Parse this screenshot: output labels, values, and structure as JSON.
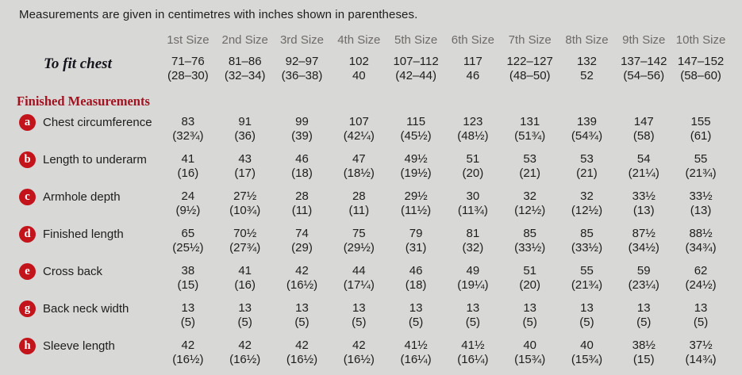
{
  "title": "Measurements are given in centimetres with inches shown in parentheses.",
  "section_heading": "Finished Measurements",
  "size_headers": [
    "1st Size",
    "2nd Size",
    "3rd Size",
    "4th Size",
    "5th Size",
    "6th Size",
    "7th Size",
    "8th Size",
    "9th Size",
    "10th Size"
  ],
  "to_fit_chest": {
    "label": "To fit chest",
    "cm": [
      "71–76",
      "81–86",
      "92–97",
      "102",
      "107–112",
      "117",
      "122–127",
      "132",
      "137–142",
      "147–152"
    ],
    "in": [
      "(28–30)",
      "(32–34)",
      "(36–38)",
      "40",
      "(42–44)",
      "46",
      "(48–50)",
      "52",
      "(54–56)",
      "(58–60)"
    ]
  },
  "rows": [
    {
      "letter": "a",
      "label": "Chest circumference",
      "cm": [
        "83",
        "91",
        "99",
        "107",
        "115",
        "123",
        "131",
        "139",
        "147",
        "155"
      ],
      "in": [
        "(32¾)",
        "(36)",
        "(39)",
        "(42¼)",
        "(45½)",
        "(48½)",
        "(51¾)",
        "(54¾)",
        "(58)",
        "(61)"
      ]
    },
    {
      "letter": "b",
      "label": "Length to underarm",
      "cm": [
        "41",
        "43",
        "46",
        "47",
        "49½",
        "51",
        "53",
        "53",
        "54",
        "55"
      ],
      "in": [
        "(16)",
        "(17)",
        "(18)",
        "(18½)",
        "(19½)",
        "(20)",
        "(21)",
        "(21)",
        "(21¼)",
        "(21¾)"
      ]
    },
    {
      "letter": "c",
      "label": "Armhole depth",
      "cm": [
        "24",
        "27½",
        "28",
        "28",
        "29½",
        "30",
        "32",
        "32",
        "33½",
        "33½"
      ],
      "in": [
        "(9½)",
        "(10¾)",
        "(11)",
        "(11)",
        "(11½)",
        "(11¾)",
        "(12½)",
        "(12½)",
        "(13)",
        "(13)"
      ]
    },
    {
      "letter": "d",
      "label": "Finished length",
      "cm": [
        "65",
        "70½",
        "74",
        "75",
        "79",
        "81",
        "85",
        "85",
        "87½",
        "88½"
      ],
      "in": [
        "(25½)",
        "(27¾)",
        "(29)",
        "(29½)",
        "(31)",
        "(32)",
        "(33½)",
        "(33½)",
        "(34½)",
        "(34¾)"
      ]
    },
    {
      "letter": "e",
      "label": "Cross back",
      "cm": [
        "38",
        "41",
        "42",
        "44",
        "46",
        "49",
        "51",
        "55",
        "59",
        "62"
      ],
      "in": [
        "(15)",
        "(16)",
        "(16½)",
        "(17¼)",
        "(18)",
        "(19¼)",
        "(20)",
        "(21¾)",
        "(23¼)",
        "(24½)"
      ]
    },
    {
      "letter": "g",
      "label": "Back neck width",
      "cm": [
        "13",
        "13",
        "13",
        "13",
        "13",
        "13",
        "13",
        "13",
        "13",
        "13"
      ],
      "in": [
        "(5)",
        "(5)",
        "(5)",
        "(5)",
        "(5)",
        "(5)",
        "(5)",
        "(5)",
        "(5)",
        "(5)"
      ]
    },
    {
      "letter": "h",
      "label": "Sleeve length",
      "cm": [
        "42",
        "42",
        "42",
        "42",
        "41½",
        "41½",
        "40",
        "40",
        "38½",
        "37½"
      ],
      "in": [
        "(16½)",
        "(16½)",
        "(16½)",
        "(16½)",
        "(16¼)",
        "(16¼)",
        "(15¾)",
        "(15¾)",
        "(15)",
        "(14¾)"
      ]
    }
  ],
  "colors": {
    "background": "#d8d8d6",
    "badge_red": "#c3141c",
    "heading_red": "#a31220",
    "header_gray": "#6e6a67",
    "text": "#1d1d1b"
  }
}
